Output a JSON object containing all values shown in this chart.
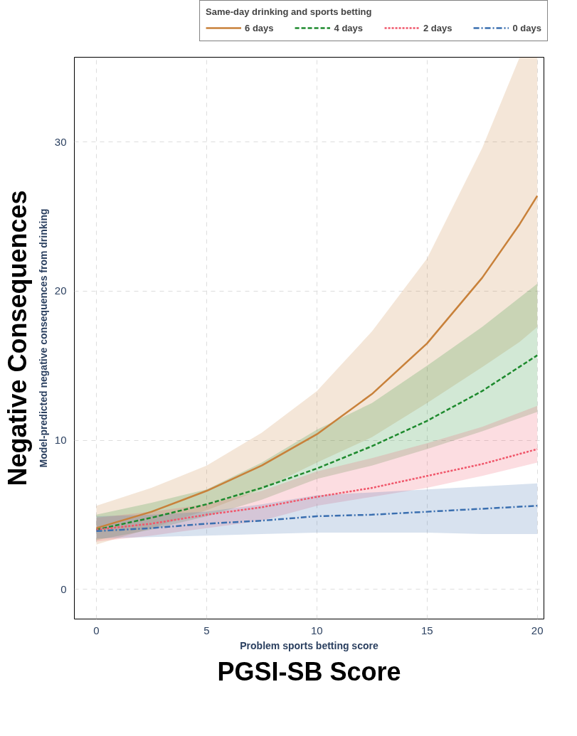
{
  "chart_data": {
    "type": "line",
    "xlabel": "Problem sports betting score",
    "ylabel": "Model-predicted negative consequences from drinking",
    "legend_title": "Same-day drinking and sports betting",
    "annotations": [
      "Negative Consequences",
      "PGSI-SB Score"
    ],
    "x": [
      0,
      2.5,
      5,
      7.5,
      10,
      12.5,
      15,
      17.5,
      20
    ],
    "series": [
      {
        "name": "6 days",
        "color": "#c8813a",
        "line_style": "solid",
        "x": [
          0,
          2.5,
          5,
          7.5,
          10,
          12.5,
          15,
          17.5,
          19.2,
          20
        ],
        "values": [
          4.1,
          5.2,
          6.6,
          8.3,
          10.4,
          13.1,
          16.5,
          20.9,
          24.5,
          26.4
        ],
        "lower": [
          3.0,
          4.1,
          5.3,
          6.7,
          8.5,
          10.2,
          12.5,
          14.9,
          16.6,
          17.6
        ],
        "upper": [
          5.6,
          6.8,
          8.3,
          10.5,
          13.3,
          17.3,
          22.2,
          29.6,
          35.7,
          35.7
        ]
      },
      {
        "name": "4 days",
        "color": "#1e8a2e",
        "line_style": "dashed",
        "values": [
          4.0,
          4.8,
          5.7,
          6.8,
          8.1,
          9.6,
          11.3,
          13.3,
          15.7
        ],
        "lower": [
          3.3,
          4.0,
          4.9,
          6.0,
          7.4,
          8.3,
          9.4,
          10.6,
          11.9
        ],
        "upper": [
          5.0,
          5.8,
          6.7,
          8.5,
          10.7,
          12.5,
          15.0,
          17.6,
          20.5
        ]
      },
      {
        "name": "2 days",
        "color": "#f0566a",
        "line_style": "dotted",
        "values": [
          4.0,
          4.4,
          5.0,
          5.5,
          6.2,
          6.8,
          7.6,
          8.4,
          9.4
        ],
        "lower": [
          3.2,
          3.6,
          4.1,
          4.6,
          5.6,
          6.2,
          6.8,
          7.6,
          8.5
        ],
        "upper": [
          4.8,
          5.2,
          5.7,
          6.6,
          7.9,
          8.8,
          9.8,
          10.9,
          12.3
        ]
      },
      {
        "name": "0 days",
        "color": "#3a6fb0",
        "line_style": "dashdot",
        "values": [
          3.9,
          4.1,
          4.4,
          4.6,
          4.9,
          5.0,
          5.2,
          5.4,
          5.6
        ],
        "lower": [
          3.4,
          3.5,
          3.6,
          3.7,
          3.8,
          3.8,
          3.8,
          3.7,
          3.7
        ],
        "upper": [
          4.9,
          5.0,
          5.2,
          5.7,
          6.3,
          6.5,
          6.7,
          6.9,
          7.1
        ]
      }
    ],
    "xlim": [
      -1,
      20.3
    ],
    "ylim": [
      -2,
      35.7
    ],
    "xticks": [
      0,
      5,
      10,
      15,
      20
    ],
    "yticks": [
      0,
      10,
      20,
      30
    ],
    "grid": true,
    "legend": "top"
  }
}
